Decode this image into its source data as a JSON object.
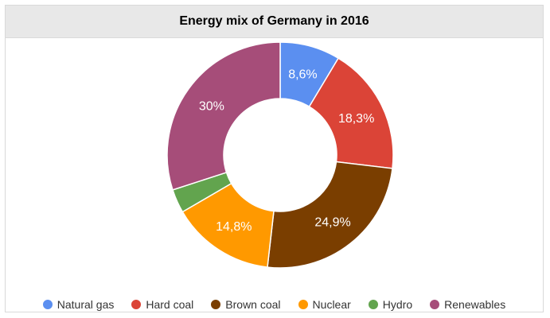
{
  "chart_data": {
    "type": "pie",
    "title": "Energy mix of Germany in 2016",
    "donut": true,
    "legend_position": "bottom",
    "slices": [
      {
        "name": "Natural gas",
        "value": 8.6,
        "label": "8,6%",
        "color": "#5b8ff0"
      },
      {
        "name": "Hard coal",
        "value": 18.3,
        "label": "18,3%",
        "color": "#db4437"
      },
      {
        "name": "Brown coal",
        "value": 24.9,
        "label": "24,9%",
        "color": "#7a3e00"
      },
      {
        "name": "Nuclear",
        "value": 14.8,
        "label": "14,8%",
        "color": "#ff9900"
      },
      {
        "name": "Hydro",
        "value": 3.4,
        "label": "",
        "color": "#62a44e"
      },
      {
        "name": "Renewables",
        "value": 30,
        "label": "30%",
        "color": "#a64d79"
      }
    ]
  }
}
